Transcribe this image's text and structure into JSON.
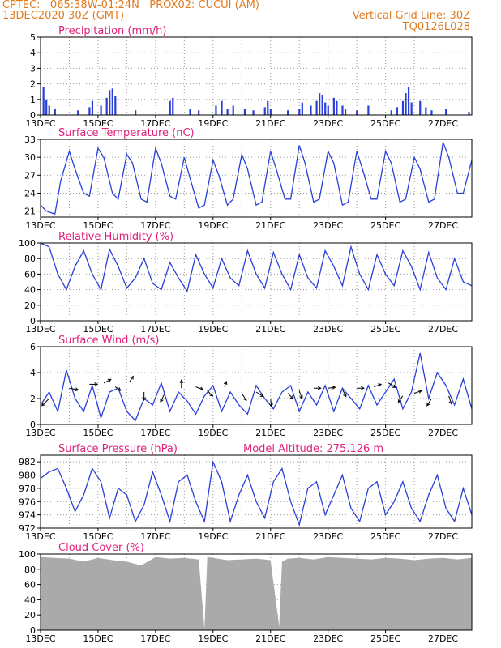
{
  "header": {
    "line1_left": "CPTEC:   065:38W-01:24N   PROX02: CUCUI (AM)",
    "line2_left": "13DEC2020 30Z (GMT)",
    "line2_right": "Vertical Grid Line: 30Z",
    "line3_right": "TQ0126L028"
  },
  "colors": {
    "header": "#e07a1f",
    "title": "#e0207a",
    "series": "#2a3fd8",
    "cloud": "#aaaaaa",
    "wind_arrow": "#000000"
  },
  "chart_data": [
    {
      "type": "bar",
      "title": "Precipitation (mm/h)",
      "ylim": [
        0,
        5
      ],
      "yticks": [
        0,
        1,
        2,
        3,
        4,
        5
      ],
      "xticks": [
        "13DEC",
        "15DEC",
        "17DEC",
        "19DEC",
        "21DEC",
        "23DEC",
        "25DEC",
        "27DEC"
      ],
      "x_range_days": [
        13,
        28
      ],
      "bars": [
        [
          13.1,
          1.8
        ],
        [
          13.2,
          1.0
        ],
        [
          13.3,
          0.6
        ],
        [
          13.5,
          0.4
        ],
        [
          14.3,
          0.3
        ],
        [
          14.7,
          0.5
        ],
        [
          14.8,
          0.9
        ],
        [
          15.1,
          0.6
        ],
        [
          15.3,
          1.1
        ],
        [
          15.4,
          1.6
        ],
        [
          15.5,
          1.7
        ],
        [
          15.6,
          1.2
        ],
        [
          16.3,
          0.3
        ],
        [
          17.5,
          0.9
        ],
        [
          17.6,
          1.1
        ],
        [
          18.2,
          0.4
        ],
        [
          18.5,
          0.3
        ],
        [
          19.1,
          0.6
        ],
        [
          19.3,
          0.9
        ],
        [
          19.5,
          0.4
        ],
        [
          19.7,
          0.6
        ],
        [
          20.1,
          0.4
        ],
        [
          20.4,
          0.3
        ],
        [
          20.8,
          0.5
        ],
        [
          20.9,
          0.9
        ],
        [
          21.0,
          0.4
        ],
        [
          21.6,
          0.3
        ],
        [
          22.0,
          0.4
        ],
        [
          22.1,
          0.8
        ],
        [
          22.4,
          0.6
        ],
        [
          22.6,
          0.9
        ],
        [
          22.7,
          1.4
        ],
        [
          22.8,
          1.3
        ],
        [
          22.9,
          0.8
        ],
        [
          23.0,
          0.6
        ],
        [
          23.2,
          1.1
        ],
        [
          23.3,
          0.9
        ],
        [
          23.5,
          0.6
        ],
        [
          23.6,
          0.4
        ],
        [
          24.0,
          0.3
        ],
        [
          24.4,
          0.6
        ],
        [
          25.2,
          0.3
        ],
        [
          25.4,
          0.5
        ],
        [
          25.6,
          0.9
        ],
        [
          25.7,
          1.4
        ],
        [
          25.8,
          1.8
        ],
        [
          25.9,
          0.8
        ],
        [
          26.2,
          0.9
        ],
        [
          26.4,
          0.5
        ],
        [
          26.6,
          0.3
        ],
        [
          27.1,
          0.4
        ],
        [
          27.9,
          0.2
        ]
      ]
    },
    {
      "type": "line",
      "title": "Surface Temperature (nC)",
      "ylim": [
        20,
        33
      ],
      "yticks": [
        21,
        24,
        27,
        30,
        33
      ],
      "xticks": [
        "13DEC",
        "15DEC",
        "17DEC",
        "19DEC",
        "21DEC",
        "23DEC",
        "25DEC",
        "27DEC"
      ],
      "x": [
        13.0,
        13.2,
        13.5,
        13.7,
        14.0,
        14.2,
        14.5,
        14.7,
        15.0,
        15.2,
        15.5,
        15.7,
        16.0,
        16.2,
        16.5,
        16.7,
        17.0,
        17.2,
        17.5,
        17.7,
        18.0,
        18.2,
        18.5,
        18.7,
        19.0,
        19.2,
        19.5,
        19.7,
        20.0,
        20.2,
        20.5,
        20.7,
        21.0,
        21.2,
        21.5,
        21.7,
        22.0,
        22.2,
        22.5,
        22.7,
        23.0,
        23.2,
        23.5,
        23.7,
        24.0,
        24.2,
        24.5,
        24.7,
        25.0,
        25.2,
        25.5,
        25.7,
        26.0,
        26.2,
        26.5,
        26.7,
        27.0,
        27.2,
        27.5,
        27.7,
        28.0
      ],
      "y": [
        22,
        21,
        20.5,
        26,
        31,
        28,
        24,
        23.5,
        31.5,
        30,
        24,
        23,
        30.5,
        29,
        23,
        22.5,
        31.5,
        29,
        23.5,
        23,
        30,
        26.5,
        21.5,
        22,
        29.5,
        27,
        22,
        23,
        30.5,
        28,
        22,
        22.5,
        31,
        28,
        23,
        23,
        32,
        29,
        22.5,
        23,
        31,
        29,
        22,
        22.5,
        31,
        28,
        23,
        23,
        31,
        29,
        22.5,
        23,
        30,
        28,
        22.5,
        23,
        32.5,
        30,
        24,
        24,
        29.5
      ]
    },
    {
      "type": "line",
      "title": "Relative Humidity (%)",
      "ylim": [
        0,
        100
      ],
      "yticks": [
        0,
        20,
        40,
        60,
        80,
        100
      ],
      "xticks": [
        "13DEC",
        "15DEC",
        "17DEC",
        "19DEC",
        "21DEC",
        "23DEC",
        "25DEC",
        "27DEC"
      ],
      "x": [
        13.0,
        13.3,
        13.6,
        13.9,
        14.2,
        14.5,
        14.8,
        15.1,
        15.4,
        15.7,
        16.0,
        16.3,
        16.6,
        16.9,
        17.2,
        17.5,
        17.8,
        18.1,
        18.4,
        18.7,
        19.0,
        19.3,
        19.6,
        19.9,
        20.2,
        20.5,
        20.8,
        21.1,
        21.4,
        21.7,
        22.0,
        22.3,
        22.6,
        22.9,
        23.2,
        23.5,
        23.8,
        24.1,
        24.4,
        24.7,
        25.0,
        25.3,
        25.6,
        25.9,
        26.2,
        26.5,
        26.8,
        27.1,
        27.4,
        27.7,
        28.0
      ],
      "y": [
        100,
        95,
        60,
        40,
        70,
        90,
        60,
        40,
        92,
        70,
        42,
        55,
        80,
        48,
        40,
        75,
        55,
        38,
        85,
        60,
        42,
        80,
        55,
        45,
        90,
        60,
        42,
        88,
        60,
        40,
        85,
        55,
        42,
        90,
        70,
        45,
        95,
        60,
        40,
        85,
        60,
        45,
        90,
        70,
        40,
        88,
        55,
        40,
        80,
        50,
        45
      ]
    },
    {
      "type": "line",
      "title": "Surface Wind (m/s)",
      "ylim": [
        0,
        6
      ],
      "yticks": [
        0,
        2,
        4,
        6
      ],
      "xticks": [
        "13DEC",
        "15DEC",
        "17DEC",
        "19DEC",
        "21DEC",
        "23DEC",
        "25DEC",
        "27DEC"
      ],
      "x": [
        13.0,
        13.3,
        13.6,
        13.9,
        14.2,
        14.5,
        14.8,
        15.1,
        15.4,
        15.7,
        16.0,
        16.3,
        16.6,
        16.9,
        17.2,
        17.5,
        17.8,
        18.1,
        18.4,
        18.7,
        19.0,
        19.3,
        19.6,
        19.9,
        20.2,
        20.5,
        20.8,
        21.1,
        21.4,
        21.7,
        22.0,
        22.3,
        22.6,
        22.9,
        23.2,
        23.5,
        23.8,
        24.1,
        24.4,
        24.7,
        25.0,
        25.3,
        25.6,
        25.9,
        26.2,
        26.5,
        26.8,
        27.1,
        27.4,
        27.7,
        28.0
      ],
      "y": [
        1.5,
        2.5,
        1.0,
        4.2,
        2.0,
        1.0,
        3.0,
        0.5,
        2.5,
        2.8,
        1.0,
        0.3,
        2.0,
        1.5,
        3.2,
        1.0,
        2.5,
        1.8,
        0.8,
        2.2,
        3.0,
        1.0,
        2.5,
        1.5,
        0.8,
        3.0,
        2.0,
        1.2,
        2.5,
        3.0,
        1.0,
        2.5,
        1.5,
        3.0,
        1.0,
        2.8,
        2.0,
        1.2,
        3.0,
        1.5,
        2.5,
        3.5,
        1.2,
        2.5,
        5.5,
        2.0,
        4.0,
        3.0,
        1.5,
        3.5,
        1.2
      ],
      "arrows": [
        [
          13.3,
          2.0,
          -0.8,
          -0.8
        ],
        [
          14.0,
          2.8,
          1.0,
          -0.2
        ],
        [
          14.7,
          3.1,
          0.9,
          0.0
        ],
        [
          15.2,
          3.2,
          0.8,
          0.4
        ],
        [
          15.6,
          2.9,
          0.6,
          -0.4
        ],
        [
          16.1,
          3.3,
          0.4,
          0.6
        ],
        [
          16.6,
          2.5,
          0.0,
          -0.9
        ],
        [
          17.3,
          2.3,
          -0.4,
          -0.8
        ],
        [
          17.9,
          2.8,
          0.0,
          0.9
        ],
        [
          18.4,
          2.9,
          0.8,
          -0.3
        ],
        [
          18.8,
          2.6,
          0.6,
          -0.6
        ],
        [
          19.4,
          2.9,
          0.2,
          0.6
        ],
        [
          20.0,
          2.4,
          0.5,
          -0.8
        ],
        [
          20.5,
          2.5,
          0.8,
          -0.5
        ],
        [
          21.0,
          2.0,
          0.1,
          -0.9
        ],
        [
          21.6,
          2.4,
          0.6,
          -0.6
        ],
        [
          22.0,
          2.6,
          0.3,
          -0.9
        ],
        [
          22.5,
          2.8,
          0.8,
          0.0
        ],
        [
          23.0,
          2.8,
          0.8,
          0.1
        ],
        [
          23.5,
          2.7,
          0.4,
          -0.8
        ],
        [
          24.0,
          2.8,
          0.8,
          0.0
        ],
        [
          24.6,
          2.9,
          0.8,
          0.3
        ],
        [
          25.1,
          3.2,
          0.8,
          -0.5
        ],
        [
          25.6,
          2.2,
          -0.5,
          -0.7
        ],
        [
          26.0,
          2.4,
          0.8,
          0.3
        ],
        [
          26.6,
          2.0,
          -0.5,
          -0.8
        ],
        [
          27.2,
          2.2,
          0.3,
          -0.9
        ]
      ]
    },
    {
      "type": "line",
      "title": "Surface Pressure (hPa)",
      "subtitle": "Model Altitude: 275.126  m",
      "ylim": [
        972,
        983
      ],
      "yticks": [
        972,
        974,
        976,
        978,
        980,
        982
      ],
      "xticks": [
        "13DEC",
        "15DEC",
        "17DEC",
        "19DEC",
        "21DEC",
        "23DEC",
        "25DEC",
        "27DEC"
      ],
      "x": [
        13.0,
        13.3,
        13.6,
        13.9,
        14.2,
        14.5,
        14.8,
        15.1,
        15.4,
        15.7,
        16.0,
        16.3,
        16.6,
        16.9,
        17.2,
        17.5,
        17.8,
        18.1,
        18.4,
        18.7,
        19.0,
        19.3,
        19.6,
        19.9,
        20.2,
        20.5,
        20.8,
        21.1,
        21.4,
        21.7,
        22.0,
        22.3,
        22.6,
        22.9,
        23.2,
        23.5,
        23.8,
        24.1,
        24.4,
        24.7,
        25.0,
        25.3,
        25.6,
        25.9,
        26.2,
        26.5,
        26.8,
        27.1,
        27.4,
        27.7,
        28.0
      ],
      "y": [
        979.5,
        980.5,
        981,
        978,
        974.5,
        977,
        981,
        979,
        973.5,
        978,
        977,
        973,
        975.5,
        980.5,
        977,
        973,
        979,
        980,
        976,
        973,
        982,
        979,
        973,
        977,
        980,
        976,
        973.5,
        979,
        981,
        976,
        972.5,
        978,
        979,
        974,
        977,
        980,
        975,
        973,
        978,
        979,
        974,
        976,
        979,
        975,
        973,
        977,
        980,
        975,
        973,
        978,
        974
      ]
    },
    {
      "type": "area",
      "title": "Cloud Cover (%)",
      "ylim": [
        0,
        100
      ],
      "yticks": [
        0,
        20,
        40,
        60,
        80,
        100
      ],
      "xticks": [
        "13DEC",
        "15DEC",
        "17DEC",
        "19DEC",
        "21DEC",
        "23DEC",
        "25DEC",
        "27DEC"
      ],
      "x": [
        13.0,
        13.5,
        14.0,
        14.5,
        15.0,
        15.5,
        16.0,
        16.5,
        17.0,
        17.5,
        18.0,
        18.5,
        18.7,
        18.8,
        19.0,
        19.5,
        20.0,
        20.5,
        21.0,
        21.3,
        21.4,
        21.6,
        22.0,
        22.5,
        23.0,
        23.5,
        24.0,
        24.5,
        25.0,
        25.5,
        26.0,
        26.5,
        27.0,
        27.5,
        28.0
      ],
      "y": [
        96,
        95,
        94,
        90,
        95,
        92,
        90,
        85,
        96,
        94,
        95,
        93,
        2,
        96,
        95,
        92,
        93,
        94,
        92,
        5,
        90,
        94,
        95,
        93,
        96,
        95,
        94,
        93,
        95,
        94,
        92,
        94,
        95,
        93,
        95
      ]
    }
  ]
}
